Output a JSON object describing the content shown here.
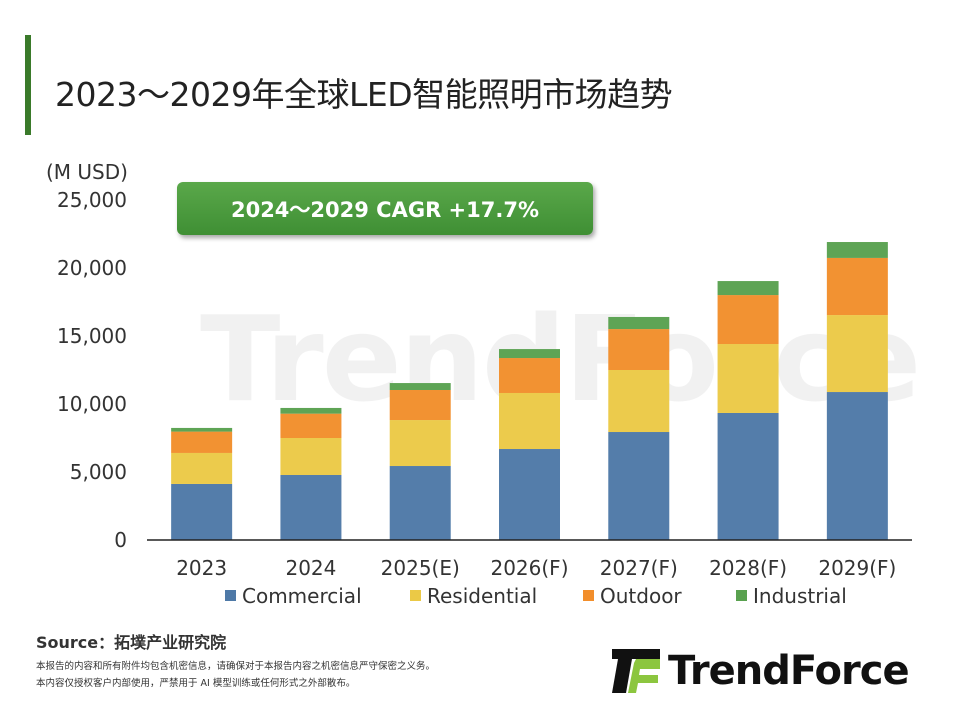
{
  "title": "2023～2029年全球LED智能照明市场趋势",
  "cagr_label": "2024～2029 CAGR +17.7%",
  "source": "Source：拓墣产业研究院",
  "disclaimer": [
    "本报告的内容和所有附件均包含机密信息，请确保对于本报告内容之机密信息严守保密之义务。",
    "本内容仅授权客户内部使用，严禁用于 AI 模型训练或任何形式之外部散布。"
  ],
  "logo": "TrendForce",
  "watermark": "TrendForce",
  "chart_data": {
    "type": "bar",
    "stacked": true,
    "ylabel": "(M USD)",
    "ylim": [
      0,
      25000
    ],
    "yticks": [
      "0",
      "5,000",
      "10,000",
      "15,000",
      "20,000",
      "25,000"
    ],
    "grid": false,
    "legend_position": "bottom",
    "categories": [
      "2023",
      "2024",
      "2025(E)",
      "2026(F)",
      "2027(F)",
      "2028(F)",
      "2029(F)"
    ],
    "series": [
      {
        "name": "Commercial",
        "color": "#4e79a7",
        "values": [
          4120,
          4780,
          5440,
          6690,
          7940,
          9340,
          10880
        ]
      },
      {
        "name": "Residential",
        "color": "#ebc946",
        "values": [
          2280,
          2720,
          3380,
          4120,
          4560,
          5070,
          5660
        ]
      },
      {
        "name": "Outdoor",
        "color": "#f28e2b",
        "values": [
          1570,
          1790,
          2210,
          2570,
          3010,
          3600,
          4200
        ]
      },
      {
        "name": "Industrial",
        "color": "#59a14f",
        "values": [
          270,
          420,
          510,
          660,
          890,
          1030,
          1170
        ]
      }
    ]
  }
}
